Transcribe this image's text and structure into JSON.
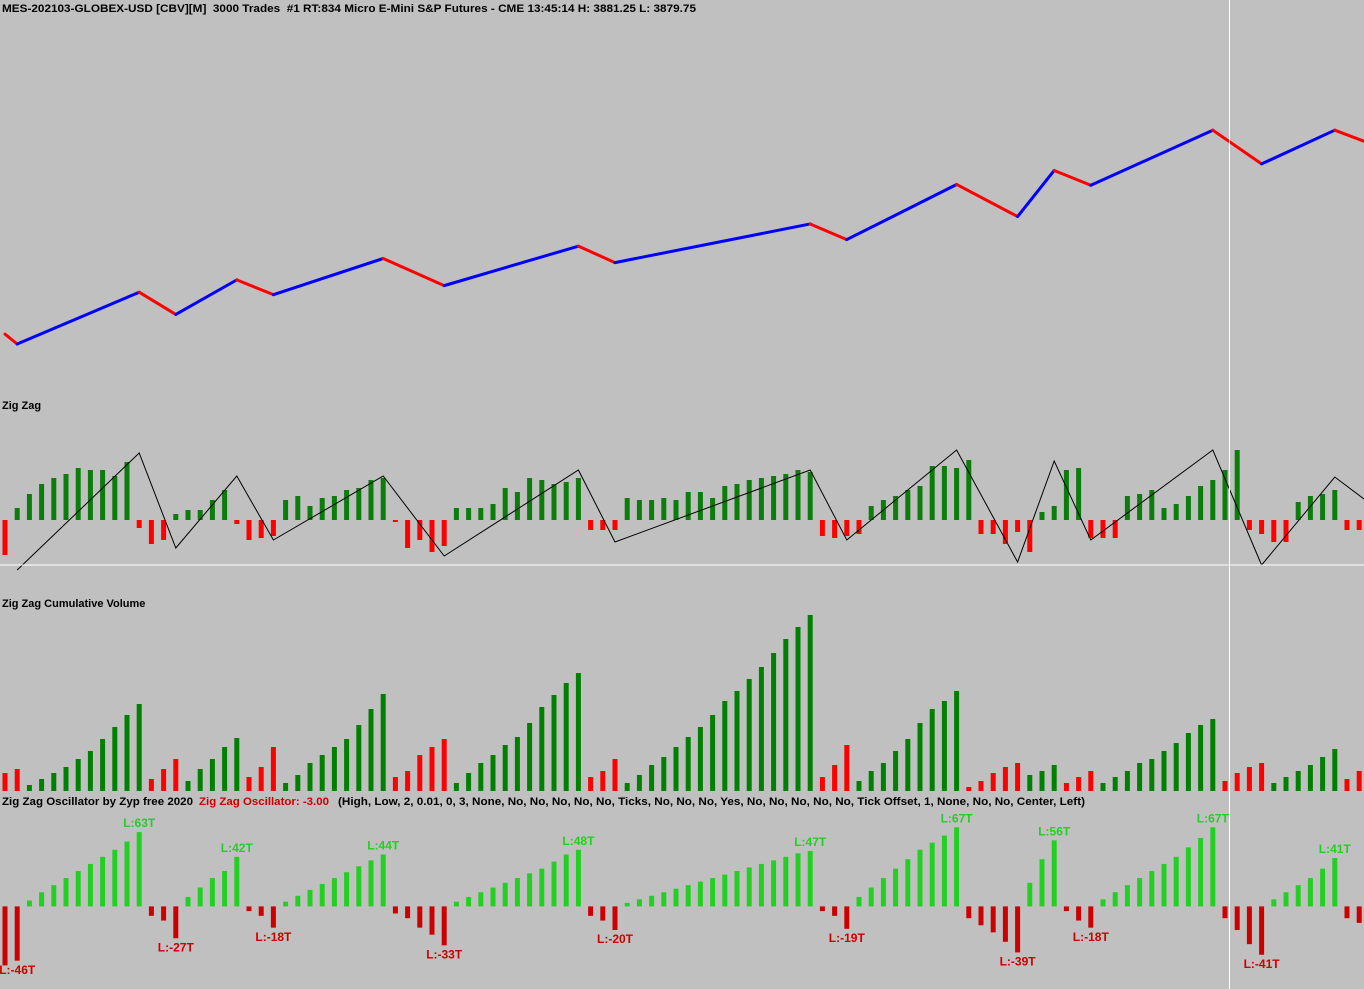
{
  "chart_data": [
    {
      "type": "line",
      "title": "MES-202103-GLOBEX-USD [CBV][M]  3000 Trades  #1 RT:834 Micro E-Mini S&P Futures - CME 13:45:14 H: 3881.25 L: 3879.75",
      "x": [
        0,
        1,
        11,
        14,
        19,
        22,
        31,
        36,
        47,
        50,
        66,
        69,
        78,
        83,
        86,
        89,
        99,
        103,
        109,
        111.5
      ],
      "values": [
        3822.0,
        3819.0,
        3834.75,
        3828.0,
        3838.5,
        3834.0,
        3845.0,
        3836.75,
        3848.75,
        3843.75,
        3855.5,
        3850.75,
        3867.5,
        3857.75,
        3871.75,
        3867.25,
        3884.0,
        3873.75,
        3884.0,
        3880.5
      ],
      "up_color": "#0000ff",
      "down_color": "#ff0000",
      "ylim": [
        3803.5,
        3917.5
      ]
    },
    {
      "type": "bar",
      "title": "Zig Zag",
      "values": [
        -35,
        12,
        26,
        36,
        42,
        46,
        52,
        50,
        50,
        44,
        58,
        -8,
        -24,
        -20,
        6,
        10,
        10,
        20,
        30,
        -4,
        -20,
        -18,
        -16,
        20,
        24,
        14,
        22,
        24,
        30,
        32,
        40,
        42,
        -2,
        -28,
        -20,
        -32,
        -26,
        12,
        12,
        12,
        16,
        32,
        28,
        42,
        40,
        36,
        38,
        42,
        -10,
        -10,
        -10,
        22,
        20,
        20,
        22,
        20,
        28,
        28,
        22,
        34,
        36,
        40,
        42,
        44,
        46,
        50,
        48,
        -16,
        -18,
        -16,
        -14,
        14,
        20,
        24,
        30,
        34,
        54,
        54,
        52,
        60,
        -14,
        -14,
        -24,
        -12,
        -32,
        8,
        14,
        50,
        52,
        -18,
        -18,
        -18,
        24,
        26,
        30,
        12,
        16,
        24,
        34,
        40,
        50,
        70,
        -10,
        -14,
        -22,
        -22,
        18,
        24,
        26,
        30,
        -10,
        -10
      ],
      "up_color": "#0a7d0a",
      "down_color": "#ff0000",
      "ylim": [
        -50,
        100
      ],
      "line": {
        "x": [
          1,
          11,
          14,
          19,
          22,
          31,
          36,
          47,
          50,
          66,
          69,
          78,
          83,
          86,
          89,
          99,
          103,
          109,
          111.5
        ],
        "values": [
          -50,
          67,
          -28,
          44,
          -20,
          44,
          -36,
          50,
          -22,
          50,
          -20,
          70,
          -42,
          59,
          -20,
          70,
          -45,
          43,
          20
        ],
        "color": "#000000"
      }
    },
    {
      "type": "bar",
      "title": "Zig Zag Cumulative Volume",
      "values": [
        18,
        22,
        6,
        12,
        18,
        24,
        32,
        40,
        52,
        64,
        76,
        87,
        12,
        22,
        32,
        10,
        22,
        32,
        44,
        53,
        14,
        24,
        44,
        8,
        16,
        28,
        36,
        44,
        52,
        66,
        82,
        97,
        14,
        20,
        36,
        44,
        52,
        8,
        18,
        28,
        36,
        46,
        54,
        68,
        84,
        96,
        108,
        118,
        14,
        20,
        32,
        8,
        16,
        26,
        34,
        44,
        54,
        64,
        76,
        90,
        100,
        112,
        124,
        138,
        152,
        164,
        176,
        14,
        26,
        46,
        10,
        20,
        28,
        40,
        52,
        68,
        82,
        90,
        100,
        4,
        10,
        18,
        24,
        28,
        16,
        20,
        26,
        8,
        14,
        20,
        8,
        14,
        20,
        28,
        32,
        40,
        48,
        58,
        66,
        72,
        10,
        18,
        24,
        28,
        8,
        14,
        20,
        26,
        34,
        42,
        12,
        20
      ],
      "colors": [
        "#ff0000",
        "#ff0000",
        "#008000",
        "#008000",
        "#008000",
        "#008000",
        "#008000",
        "#008000",
        "#008000",
        "#008000",
        "#008000",
        "#008000",
        "#ff0000",
        "#ff0000",
        "#ff0000",
        "#008000",
        "#008000",
        "#008000",
        "#008000",
        "#008000",
        "#ff0000",
        "#ff0000",
        "#ff0000",
        "#008000",
        "#008000",
        "#008000",
        "#008000",
        "#008000",
        "#008000",
        "#008000",
        "#008000",
        "#008000",
        "#ff0000",
        "#ff0000",
        "#ff0000",
        "#ff0000",
        "#ff0000",
        "#008000",
        "#008000",
        "#008000",
        "#008000",
        "#008000",
        "#008000",
        "#008000",
        "#008000",
        "#008000",
        "#008000",
        "#008000",
        "#ff0000",
        "#ff0000",
        "#ff0000",
        "#008000",
        "#008000",
        "#008000",
        "#008000",
        "#008000",
        "#008000",
        "#008000",
        "#008000",
        "#008000",
        "#008000",
        "#008000",
        "#008000",
        "#008000",
        "#008000",
        "#008000",
        "#008000",
        "#ff0000",
        "#ff0000",
        "#ff0000",
        "#008000",
        "#008000",
        "#008000",
        "#008000",
        "#008000",
        "#008000",
        "#008000",
        "#008000",
        "#008000",
        "#ff0000",
        "#ff0000",
        "#ff0000",
        "#ff0000",
        "#ff0000",
        "#008000",
        "#008000",
        "#008000",
        "#ff0000",
        "#ff0000",
        "#ff0000",
        "#008000",
        "#008000",
        "#008000",
        "#008000",
        "#008000",
        "#008000",
        "#008000",
        "#008000",
        "#008000",
        "#008000",
        "#ff0000",
        "#ff0000",
        "#ff0000",
        "#ff0000",
        "#008000",
        "#008000",
        "#008000",
        "#008000",
        "#008000",
        "#008000",
        "#ff0000",
        "#ff0000"
      ],
      "ylim": [
        0,
        180
      ]
    },
    {
      "type": "bar",
      "title": "Zig Zag Oscillator by Zyp free 2020",
      "subtitle": "Zig Zag Oscillator: -3.00",
      "parameters": "(High, Low, 2, 0.01, 0, 3, None, No, No, No, No, No, Ticks, No, No, No, Yes, No, No, No, No, No, Tick Offset, 1, None, No, No, Center, Left)",
      "values": [
        -50,
        -46,
        5,
        12,
        18,
        24,
        30,
        36,
        42,
        48,
        55,
        63,
        -8,
        -12,
        -27,
        8,
        16,
        24,
        30,
        42,
        -4,
        -8,
        -18,
        4,
        9,
        14,
        19,
        24,
        29,
        34,
        39,
        44,
        -6,
        -10,
        -18,
        -24,
        -33,
        4,
        8,
        12,
        16,
        20,
        24,
        28,
        32,
        38,
        44,
        48,
        -8,
        -12,
        -20,
        3,
        6,
        9,
        12,
        15,
        18,
        21,
        24,
        27,
        30,
        33,
        36,
        39,
        42,
        45,
        47,
        -4,
        -8,
        -19,
        8,
        16,
        24,
        32,
        40,
        48,
        54,
        60,
        67,
        -10,
        -16,
        -22,
        -30,
        -39,
        20,
        40,
        56,
        -4,
        -12,
        -18,
        6,
        12,
        18,
        24,
        30,
        36,
        42,
        50,
        58,
        67,
        -10,
        -20,
        -32,
        -41,
        6,
        12,
        18,
        24,
        32,
        41,
        -10,
        -14
      ],
      "value_labels": [
        null,
        "L:-46T",
        null,
        null,
        null,
        null,
        null,
        null,
        null,
        null,
        null,
        "L:63T",
        null,
        null,
        "L:-27T",
        null,
        null,
        null,
        null,
        "L:42T",
        null,
        null,
        "L:-18T",
        null,
        null,
        null,
        null,
        null,
        null,
        null,
        null,
        "L:44T",
        null,
        null,
        null,
        null,
        "L:-33T",
        null,
        null,
        null,
        null,
        null,
        null,
        null,
        null,
        null,
        null,
        "L:48T",
        null,
        null,
        "L:-20T",
        null,
        null,
        null,
        null,
        null,
        null,
        null,
        null,
        null,
        null,
        null,
        null,
        null,
        null,
        null,
        "L:47T",
        null,
        null,
        "L:-19T",
        null,
        null,
        null,
        null,
        null,
        null,
        null,
        null,
        "L:67T",
        null,
        null,
        null,
        null,
        "L:-39T",
        null,
        null,
        "L:56T",
        null,
        null,
        "L:-18T",
        null,
        null,
        null,
        null,
        null,
        null,
        null,
        null,
        null,
        "L:67T",
        null,
        null,
        null,
        "L:-41T",
        null,
        null,
        null,
        null,
        null,
        "L:41T",
        null,
        null
      ],
      "up_color": "#22d022",
      "down_color": "#cc0000",
      "ylim": [
        -70,
        80
      ]
    }
  ]
}
